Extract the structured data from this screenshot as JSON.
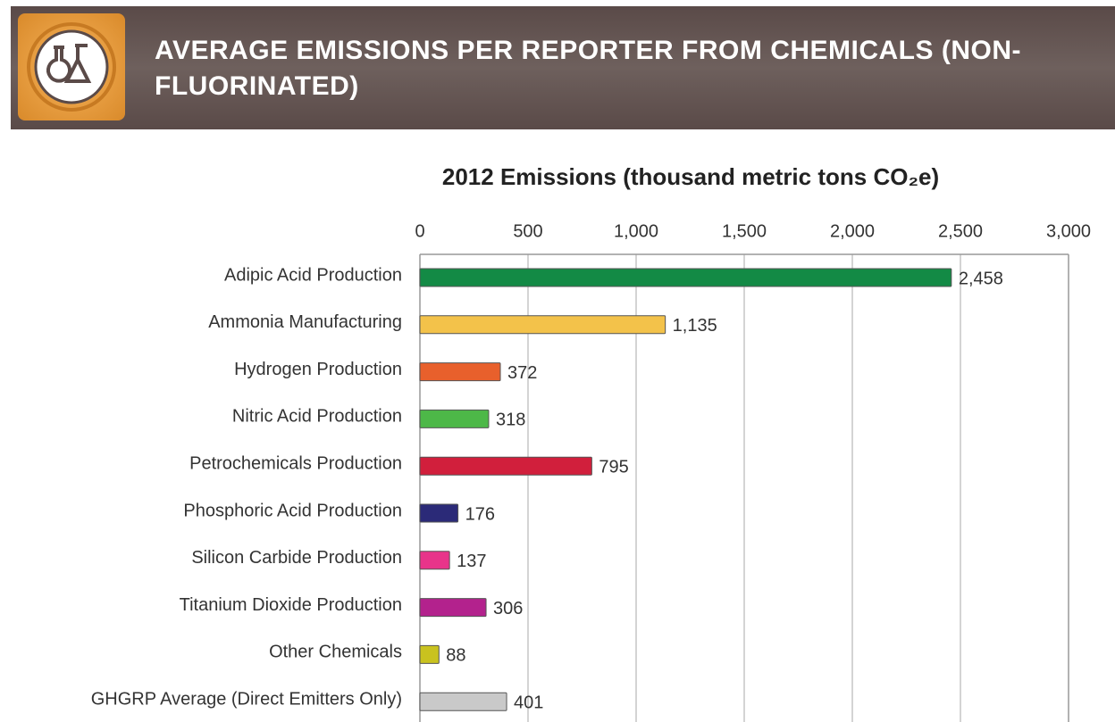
{
  "header": {
    "title": "AVERAGE EMISSIONS PER REPORTER FROM CHEMICALS (NON-FLUORINATED)"
  },
  "chart_data": {
    "type": "bar",
    "orientation": "horizontal",
    "x_label": "2012 Emissions (thousand metric tons CO₂e)",
    "categories": [
      "Adipic Acid Production",
      "Ammonia Manufacturing",
      "Hydrogen Production",
      "Nitric Acid Production",
      "Petrochemicals Production",
      "Phosphoric Acid Production",
      "Silicon Carbide Production",
      "Titanium Dioxide Production",
      "Other Chemicals",
      "GHGRP Average (Direct Emitters Only)"
    ],
    "values": [
      2458,
      1135,
      372,
      318,
      795,
      176,
      137,
      306,
      88,
      401
    ],
    "value_labels": [
      "2,458",
      "1,135",
      "372",
      "318",
      "795",
      "176",
      "137",
      "306",
      "88",
      "401"
    ],
    "colors": [
      "#138a45",
      "#f3c24a",
      "#e8602c",
      "#4db848",
      "#d11f3c",
      "#2b2a78",
      "#e8348a",
      "#b3228d",
      "#c9c21f",
      "#c9c9c9"
    ],
    "xlim": [
      0,
      3000
    ],
    "xticks": [
      0,
      500,
      {
        "value": 1000,
        "label": "1,000"
      },
      {
        "value": 1500,
        "label": "1,500"
      },
      {
        "value": 2000,
        "label": "2,000"
      },
      {
        "value": 2500,
        "label": "2,500"
      },
      {
        "value": 3000,
        "label": "3,000"
      }
    ],
    "grid": true,
    "xaxis_position": "top"
  }
}
